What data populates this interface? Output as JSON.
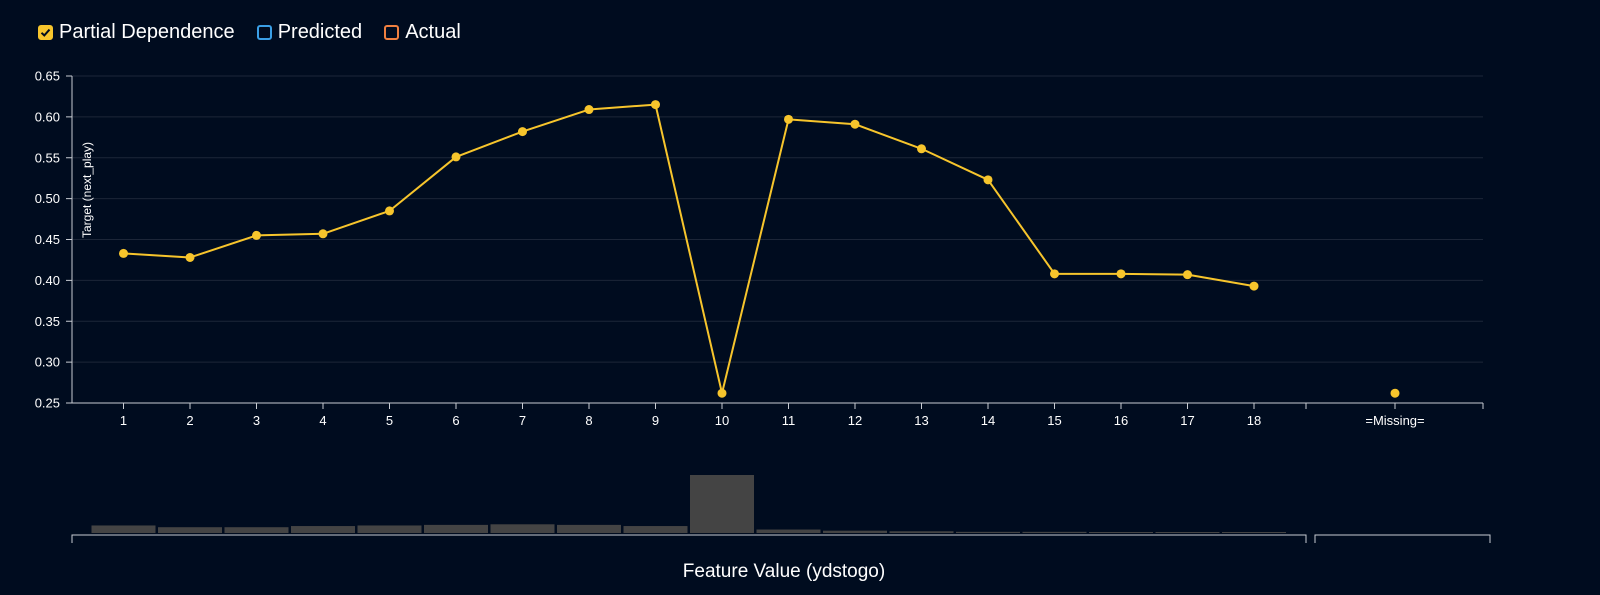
{
  "legend": {
    "partial_dependence": "Partial Dependence",
    "predicted": "Predicted",
    "actual": "Actual"
  },
  "colors": {
    "background": "#000c1f",
    "line": "#f7c52c",
    "grid": "#1c2638",
    "axis": "#c8ccd3",
    "histogram": "#444444",
    "predicted": "#3a9fe6",
    "actual": "#f08040"
  },
  "chart_data": {
    "type": "line",
    "title": "",
    "xlabel": "Feature Value (ydstogo)",
    "ylabel": "Target (next_play)",
    "ylim": [
      0.25,
      0.65
    ],
    "yticks": [
      "0.25",
      "0.30",
      "0.35",
      "0.40",
      "0.45",
      "0.50",
      "0.55",
      "0.60",
      "0.65"
    ],
    "grid": true,
    "categories": [
      "1",
      "2",
      "3",
      "4",
      "5",
      "6",
      "7",
      "8",
      "9",
      "10",
      "11",
      "12",
      "13",
      "14",
      "15",
      "16",
      "17",
      "18"
    ],
    "missing_label": "=Missing=",
    "series": [
      {
        "name": "Partial Dependence",
        "values": [
          0.433,
          0.428,
          0.455,
          0.457,
          0.485,
          0.551,
          0.582,
          0.609,
          0.615,
          0.262,
          0.597,
          0.591,
          0.561,
          0.523,
          0.408,
          0.408,
          0.407,
          0.393
        ],
        "missing_value": 0.262
      }
    ],
    "histogram": {
      "values": [
        0.13,
        0.1,
        0.1,
        0.12,
        0.13,
        0.14,
        0.15,
        0.14,
        0.12,
        1.0,
        0.06,
        0.04,
        0.03,
        0.02,
        0.02,
        0.01,
        0.01,
        0.01
      ],
      "missing_value": 0
    }
  }
}
